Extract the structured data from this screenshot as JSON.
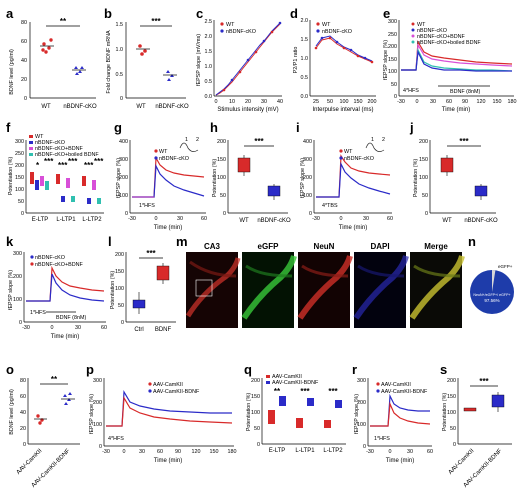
{
  "colors": {
    "wt": "#d82a2a",
    "cko": "#2b2bc8",
    "ckoBdnf": "#d84fd8",
    "ckoBoiled": "#30c0b0",
    "inset": "#2a2a2a"
  },
  "labels": {
    "a": "a",
    "b": "b",
    "c": "c",
    "d": "d",
    "e": "e",
    "f": "f",
    "g": "g",
    "h": "h",
    "i": "i",
    "j": "j",
    "k": "k",
    "l": "l",
    "m": "m",
    "n": "n",
    "o": "o",
    "p": "p",
    "q": "q",
    "r": "r",
    "s": "s"
  },
  "panels": {
    "a": {
      "ylabel": "BDNF level (pg/ml)",
      "ticks": [
        "0",
        "20",
        "40",
        "60",
        "80"
      ],
      "groups": [
        "WT",
        "nBDNF-cKO"
      ],
      "sig": "**"
    },
    "b": {
      "ylabel": "Fold change BDNF mRNA",
      "ticks": [
        "0",
        "0.5",
        "1.0",
        "1.5"
      ],
      "groups": [
        "WT",
        "nBDNF-cKO"
      ],
      "sig": "***"
    },
    "c": {
      "ylabel": "fEPSP slope (mV/ms)",
      "xlabel": "Stimulus intensity (mV)",
      "yticks": [
        "0.0",
        "0.5",
        "1.0",
        "1.5",
        "2.0",
        "2.5"
      ],
      "xticks": [
        "0",
        "10",
        "20",
        "30",
        "40"
      ],
      "legend": [
        "WT",
        "nBDNF-cKO"
      ]
    },
    "d": {
      "ylabel": "P2/P1 ratio",
      "xlabel": "Interpulse interval (ms)",
      "yticks": [
        "0.0",
        "0.5",
        "1.0",
        "1.5",
        "2.0"
      ],
      "xticks": [
        "25",
        "50",
        "100",
        "150",
        "200"
      ],
      "legend": [
        "WT",
        "nBDNF-cKO"
      ]
    },
    "e": {
      "ylabel": "fEPSP slope (%)",
      "xlabel": "Time (min)",
      "yticks": [
        "0",
        "50",
        "100",
        "150",
        "200",
        "250",
        "300"
      ],
      "xticks": [
        "-30",
        "0",
        "30",
        "60",
        "90",
        "120",
        "150",
        "180"
      ],
      "legend": [
        "WT",
        "nBDNF-cKO",
        "nBDNF-cKO+BDNF",
        "nBDNF-cKO+boiled BDNF"
      ],
      "note1": "4*HFS",
      "note2": "BDNF (8nM)"
    },
    "f": {
      "ylabel": "Potentiation (%)",
      "yticks": [
        "0",
        "50",
        "100",
        "150",
        "200",
        "250",
        "300"
      ],
      "xgroups": [
        "E-LTP",
        "L-LTP1",
        "L-LTP2"
      ],
      "legend": [
        "WT",
        "nBDNF-cKO",
        "nBDNF-cKO+BDNF",
        "nBDNF-cKO+boiled BDNF"
      ],
      "sigs": [
        "*",
        "***",
        "***",
        "***",
        "***",
        "***"
      ]
    },
    "g": {
      "ylabel": "fEPSP slope (%)",
      "xlabel": "Time (min)",
      "yticks": [
        "0",
        "100",
        "200",
        "300",
        "400"
      ],
      "xticks": [
        "-30",
        "0",
        "30",
        "60"
      ],
      "legend": [
        "WT",
        "nBDNF-cKO"
      ],
      "note": "1*HFS",
      "i1": "1",
      "i2": "2"
    },
    "h": {
      "ylabel": "Potentiation (%)",
      "yticks": [
        "0",
        "50",
        "100",
        "150",
        "200"
      ],
      "groups": [
        "WT",
        "nBDNF-cKO"
      ],
      "sig": "***"
    },
    "i": {
      "ylabel": "fEPSP slope (%)",
      "xlabel": "Time (min)",
      "yticks": [
        "0",
        "100",
        "200",
        "300",
        "400"
      ],
      "xticks": [
        "-30",
        "0",
        "30",
        "60"
      ],
      "legend": [
        "WT",
        "nBDNF-cKO"
      ],
      "note": "4*TBS",
      "i1": "1",
      "i2": "2"
    },
    "j": {
      "ylabel": "Potentiation (%)",
      "yticks": [
        "0",
        "50",
        "100",
        "150",
        "200"
      ],
      "groups": [
        "WT",
        "nBDNF-cKO"
      ],
      "sig": "***"
    },
    "k": {
      "ylabel": "fEPSP slope (%)",
      "xlabel": "Time (min)",
      "yticks": [
        "0",
        "100",
        "200",
        "300"
      ],
      "xticks": [
        "-30",
        "0",
        "30",
        "60"
      ],
      "legend": [
        "nBDNF-cKO",
        "nBDNF-cKO+BDNF"
      ],
      "note1": "1*HFS",
      "note2": "BDNF (8nM)"
    },
    "l": {
      "ylabel": "Potentiation (%)",
      "yticks": [
        "0",
        "50",
        "100",
        "150",
        "200"
      ],
      "groups": [
        "Ctrl",
        "BDNF"
      ],
      "sig": "***"
    },
    "m": {
      "titles": [
        "CA3",
        "eGFP",
        "NeuN",
        "DAPI",
        "Merge"
      ]
    },
    "n": {
      "label1": "eGFP+",
      "label2": "NeuN+/eGFP+/ eGFP+",
      "pct": "97.56%"
    },
    "o": {
      "ylabel": "BDNF level (pg/ml)",
      "ticks": [
        "0",
        "20",
        "40",
        "60",
        "80"
      ],
      "groups": [
        "AAV-CamKII",
        "AAV-CamKII-BDNF"
      ],
      "sig": "**"
    },
    "p": {
      "ylabel": "fEPSP slope (%)",
      "xlabel": "Time (min)",
      "yticks": [
        "0",
        "100",
        "200",
        "300"
      ],
      "xticks": [
        "-30",
        "0",
        "30",
        "60",
        "90",
        "120",
        "150",
        "180"
      ],
      "legend": [
        "AAV-CamKII",
        "AAV-CamKII-BDNF"
      ],
      "note": "4*HFS"
    },
    "q": {
      "ylabel": "Potentiation (%)",
      "yticks": [
        "0",
        "50",
        "100",
        "150",
        "200"
      ],
      "xgroups": [
        "E-LTP",
        "L-LTP1",
        "L-LTP2"
      ],
      "legend": [
        "AAV-CamKII",
        "AAV-CamKII-BDNF"
      ],
      "sigs": [
        "**",
        "***",
        "***"
      ]
    },
    "r": {
      "ylabel": "fEPSP slope (%)",
      "xlabel": "Time (min)",
      "yticks": [
        "0",
        "100",
        "200",
        "300"
      ],
      "xticks": [
        "-30",
        "0",
        "30",
        "60"
      ],
      "legend": [
        "AAV-CamKII",
        "AAV-CamKII-BDNF"
      ],
      "note": "1*HFS"
    },
    "s": {
      "ylabel": "Potentiation (%)",
      "yticks": [
        "0",
        "50",
        "100",
        "150",
        "200"
      ],
      "groups": [
        "AAV-CamKII",
        "AAV-CamKII-BDNF"
      ],
      "sig": "***"
    }
  }
}
